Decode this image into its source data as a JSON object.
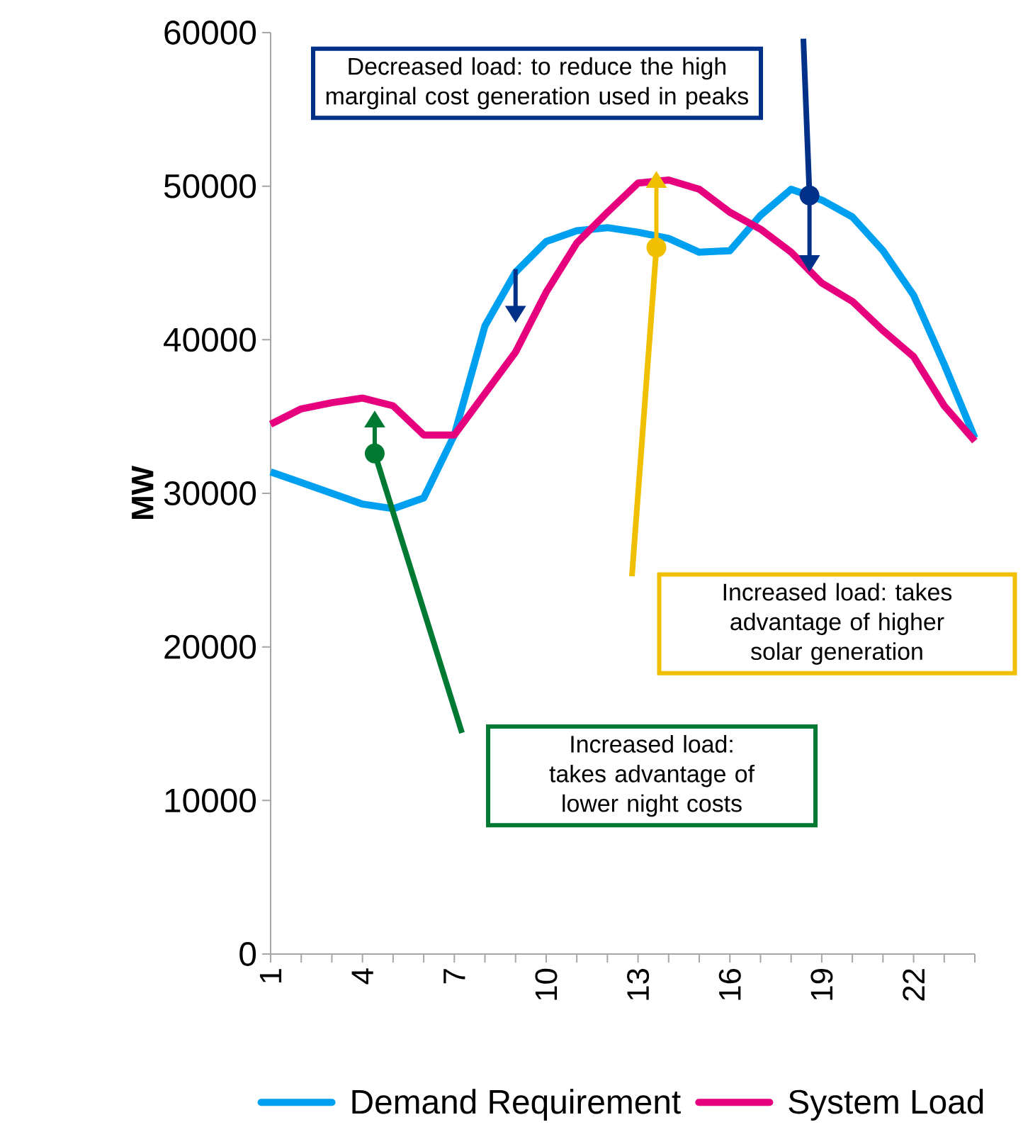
{
  "chart_data": {
    "type": "line",
    "ylabel": "MW",
    "categories": [
      "1",
      null,
      null,
      "4",
      null,
      null,
      "7",
      null,
      null,
      "10",
      null,
      null,
      "13",
      null,
      null,
      "16",
      null,
      null,
      "19",
      null,
      null,
      "22",
      null,
      null
    ],
    "series": [
      {
        "name": "Demand Requirement",
        "color": "#00a0f0",
        "values": [
          31400,
          30700,
          30000,
          29300,
          29000,
          29700,
          33800,
          40900,
          44400,
          46400,
          47100,
          47300,
          47000,
          46600,
          45700,
          45800,
          48100,
          49800,
          49100,
          48000,
          45800,
          42900,
          38400,
          33600
        ]
      },
      {
        "name": "System Load",
        "color": "#e6007e",
        "values": [
          34500,
          35500,
          35900,
          36200,
          35700,
          33800,
          33800,
          36500,
          39200,
          43100,
          46300,
          48300,
          50200,
          50400,
          49800,
          48300,
          47200,
          45700,
          43700,
          42500,
          40600,
          38900,
          35700,
          33400
        ]
      }
    ],
    "ylim": [
      0,
      60000
    ],
    "yticks": [
      0,
      10000,
      20000,
      30000,
      40000,
      50000,
      60000
    ],
    "grid": false,
    "legend": "bottom",
    "marker": "none",
    "line_style": "solid",
    "annotations": [
      "Decreased load: to reduce the high marginal cost generation used in peaks",
      "Increased load: takes advantage of higher solar generation",
      "Increased load: takes advantage of lower night costs"
    ]
  }
}
